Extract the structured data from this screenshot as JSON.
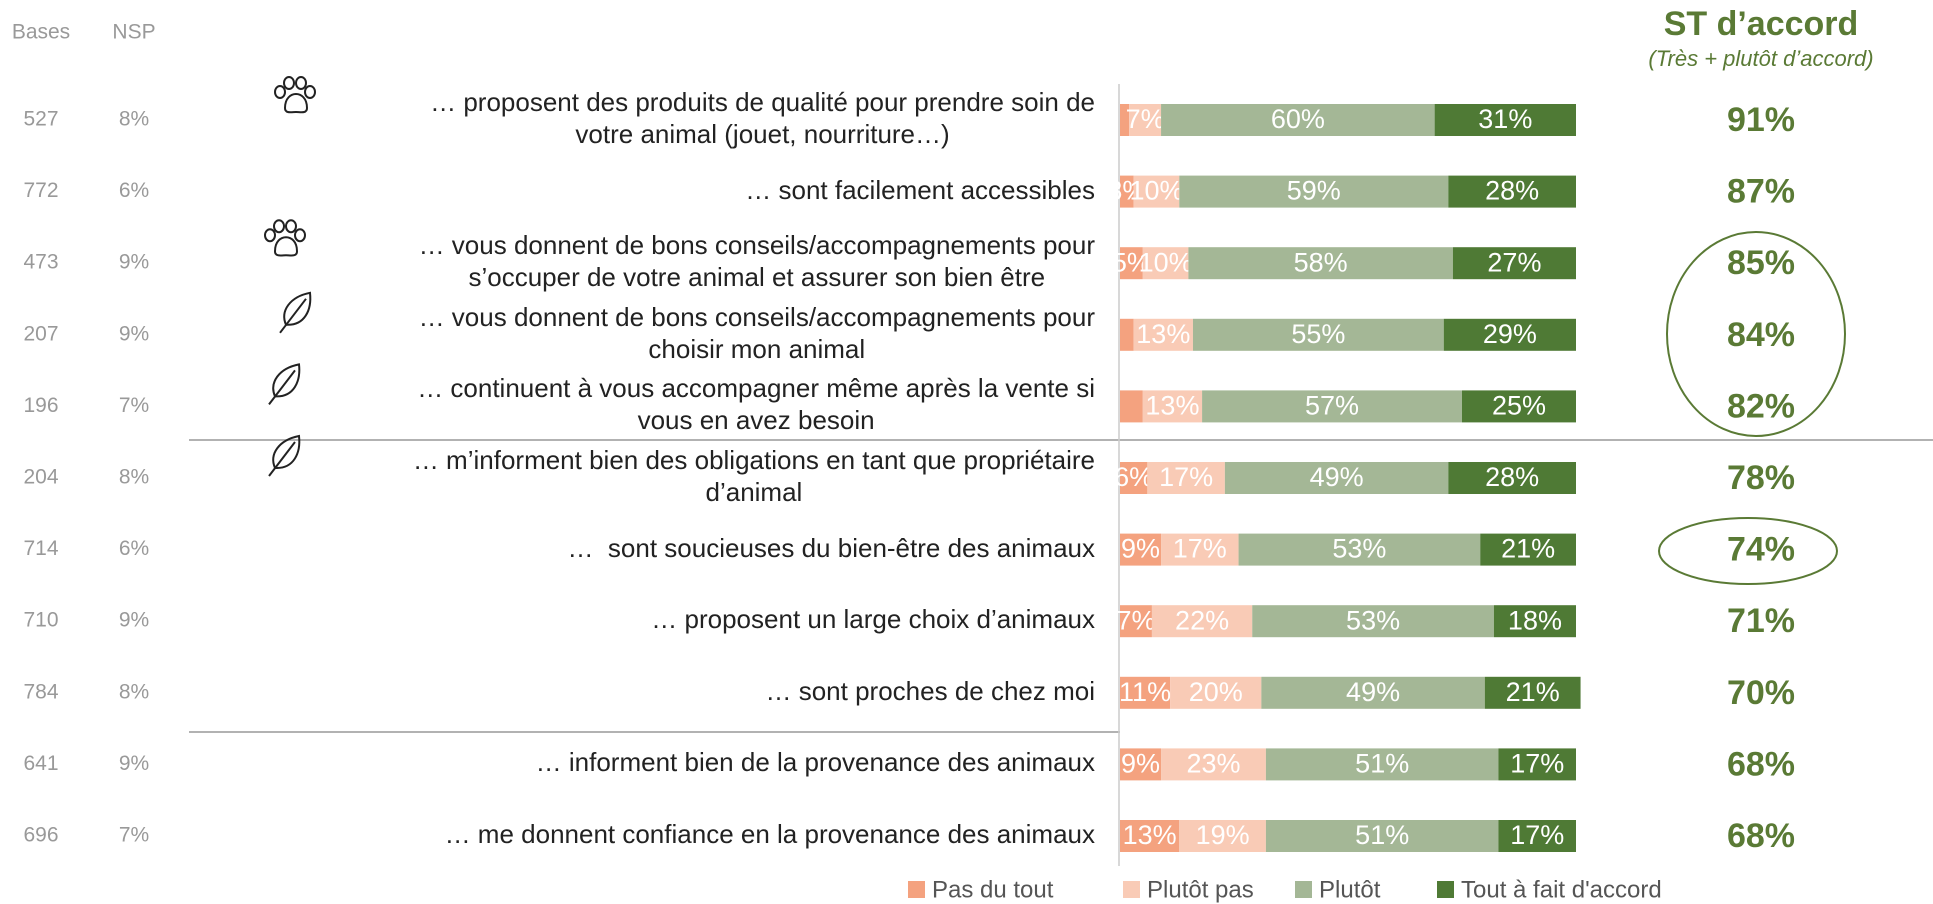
{
  "chart_data": {
    "type": "bar",
    "orientation": "horizontal",
    "stacked": true,
    "xlim": [
      0,
      100
    ],
    "categories": [
      "… proposent des produits de qualité pour prendre soin de\nvotre animal (jouet, nourriture…)",
      "… sont facilement accessibles",
      "… vous donnent de bons conseils/accompagnements pour\ns’occuper de votre animal et assurer son bien être",
      "… vous donnent de bons conseils/accompagnements pour\nchoisir mon animal",
      "… continuent à vous accompagner même après la vente si\nvous en avez besoin",
      "… m’informent bien des obligations en tant que propriétaire\nd’animal",
      "…  sont soucieuses du bien-être des animaux",
      "… proposent un large choix d’animaux",
      "… sont proches de chez moi",
      "… informent bien de la provenance des animaux",
      "… me donnent confiance en la provenance des animaux"
    ],
    "series": [
      {
        "name": "Pas du tout",
        "color": "#f4a27f",
        "values": [
          2,
          3,
          5,
          3,
          5,
          6,
          9,
          7,
          11,
          9,
          13
        ],
        "value_labels": [
          null,
          "3%",
          "5%",
          null,
          null,
          "6%",
          "9%",
          "7%",
          "11%",
          "9%",
          "13%"
        ]
      },
      {
        "name": "Plutôt pas",
        "color": "#f9cbb6",
        "values": [
          7,
          10,
          10,
          13,
          13,
          17,
          17,
          22,
          20,
          23,
          19
        ],
        "value_labels": [
          "7%",
          "10%",
          "10%",
          "13%",
          "13%",
          "17%",
          "17%",
          "22%",
          "20%",
          "23%",
          "19%"
        ]
      },
      {
        "name": "Plutôt",
        "color": "#a4b796",
        "values": [
          60,
          59,
          58,
          55,
          57,
          49,
          53,
          53,
          49,
          51,
          51
        ],
        "value_labels": [
          "60%",
          "59%",
          "58%",
          "55%",
          "57%",
          "49%",
          "53%",
          "53%",
          "49%",
          "51%",
          "51%"
        ]
      },
      {
        "name": "Tout à fait d'accord",
        "color": "#4f7a35",
        "values": [
          31,
          28,
          27,
          29,
          25,
          28,
          21,
          18,
          21,
          17,
          17
        ],
        "value_labels": [
          "31%",
          "28%",
          "27%",
          "29%",
          "25%",
          "28%",
          "21%",
          "18%",
          "21%",
          "17%",
          "17%"
        ]
      }
    ],
    "bases": {
      "header": "Bases",
      "values": [
        527,
        772,
        473,
        207,
        196,
        204,
        714,
        710,
        784,
        641,
        696
      ]
    },
    "nsp": {
      "header": "NSP",
      "values": [
        8,
        6,
        9,
        9,
        7,
        8,
        6,
        9,
        8,
        9,
        7
      ],
      "value_labels": [
        "8%",
        "6%",
        "9%",
        "9%",
        "7%",
        "8%",
        "6%",
        "9%",
        "8%",
        "9%",
        "7%"
      ]
    },
    "st": {
      "header": "ST d’accord",
      "subheader": "(Très + plutôt d’accord)",
      "color": "#5a7a35",
      "values": [
        91,
        87,
        85,
        84,
        82,
        78,
        74,
        71,
        70,
        68,
        68
      ],
      "value_labels": [
        "91%",
        "87%",
        "85%",
        "84%",
        "82%",
        "78%",
        "74%",
        "71%",
        "70%",
        "68%",
        "68%"
      ]
    }
  }
}
